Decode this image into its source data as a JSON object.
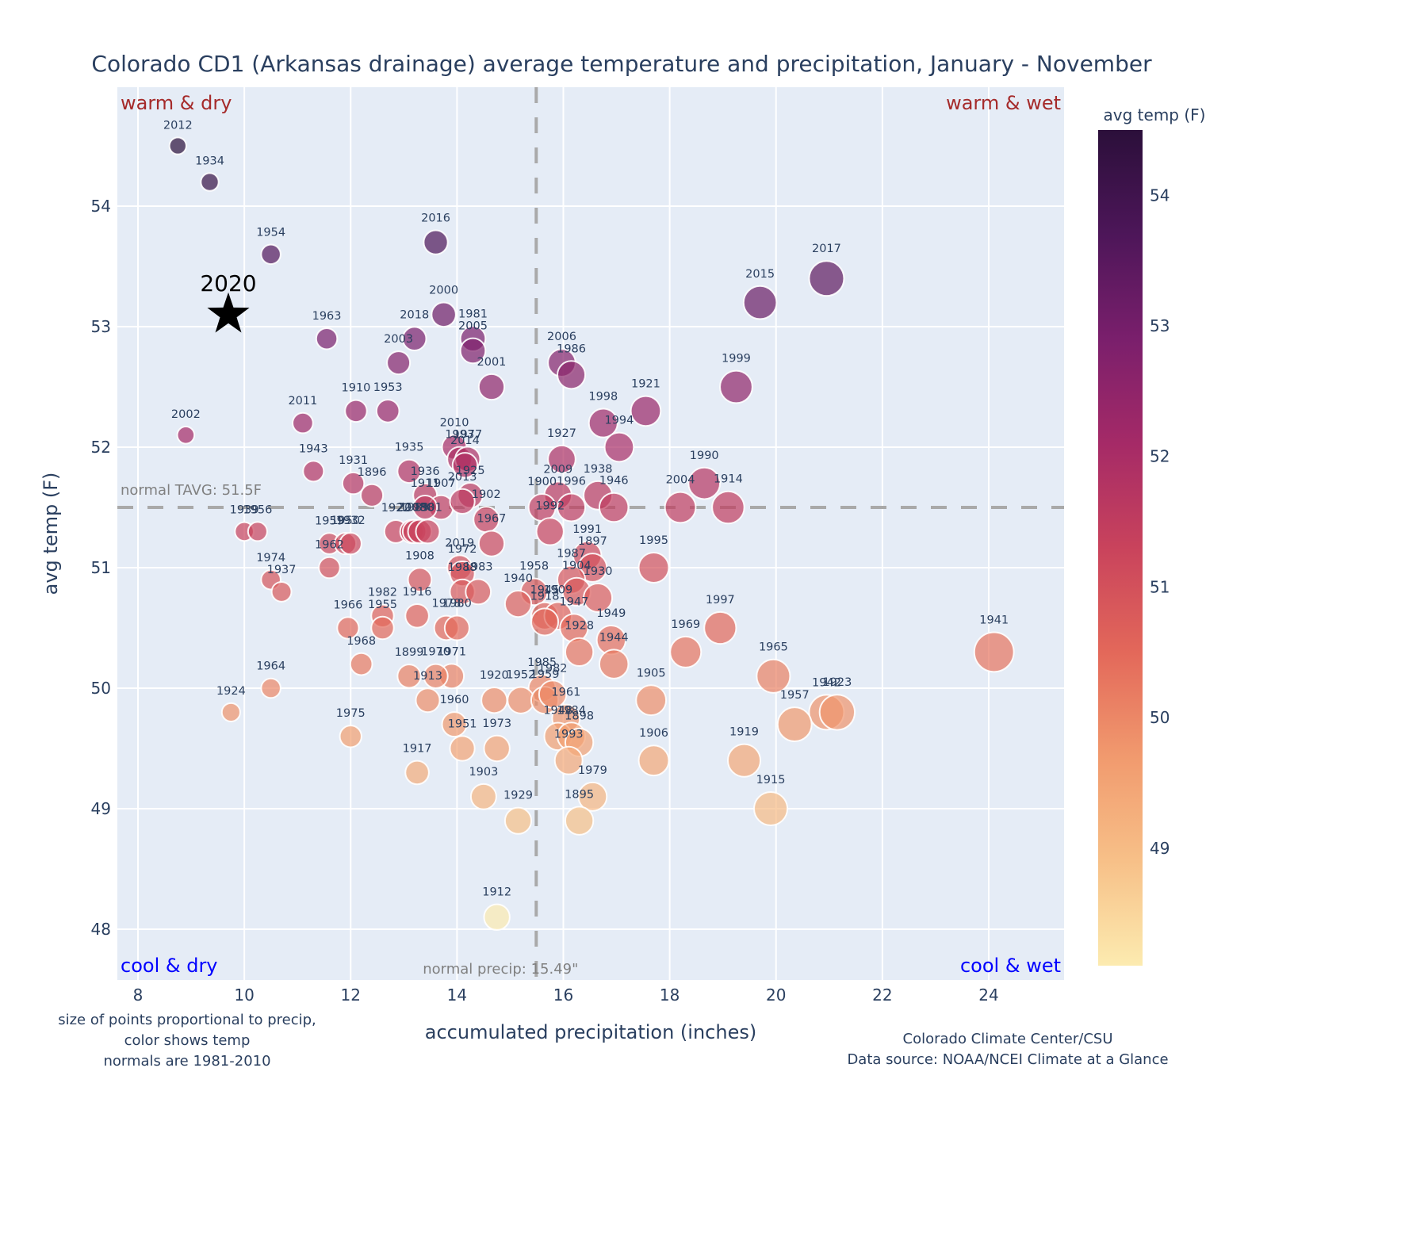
{
  "chart_data": {
    "type": "scatter",
    "title": "Colorado CD1 (Arkansas drainage) average temperature and precipitation, January - November",
    "xlabel": "accumulated precipitation (inches)",
    "ylabel": "avg temp (F)",
    "xlim": [
      7.62,
      25.4
    ],
    "ylim": [
      47.6,
      55.0
    ],
    "xticks": [
      8,
      10,
      12,
      14,
      16,
      18,
      20,
      22,
      24
    ],
    "yticks": [
      48,
      49,
      50,
      51,
      52,
      53,
      54
    ],
    "grid": true,
    "size_encoding": "precipitation",
    "color_encoding": "avg temp (F)",
    "colorbar": {
      "title": "avg temp (F)",
      "range": [
        48.1,
        54.5
      ],
      "ticks": [
        49,
        50,
        51,
        52,
        53,
        54
      ],
      "colorscale": [
        "#fcebb0",
        "#f7c088",
        "#f19a6e",
        "#e3685a",
        "#c9435c",
        "#a52a67",
        "#7a1f6c",
        "#4d1659",
        "#2b0f3a"
      ]
    },
    "normals": {
      "temp": 51.5,
      "temp_label": "normal TAVG: 51.5F",
      "precip": 15.49,
      "precip_label": "normal precip: 15.49\""
    },
    "quadrants": {
      "top_left": "warm & dry",
      "top_right": "warm & wet",
      "bottom_left": "cool & dry",
      "bottom_right": "cool & wet"
    },
    "highlight": {
      "year": "2020",
      "precip": 9.7,
      "temp": 53.1,
      "marker": "star"
    },
    "points": [
      {
        "year": "2012",
        "precip": 8.75,
        "temp": 54.5
      },
      {
        "year": "1934",
        "precip": 9.35,
        "temp": 54.2
      },
      {
        "year": "1954",
        "precip": 10.5,
        "temp": 53.6
      },
      {
        "year": "2016",
        "precip": 13.6,
        "temp": 53.7
      },
      {
        "year": "2017",
        "precip": 20.95,
        "temp": 53.4
      },
      {
        "year": "2015",
        "precip": 19.7,
        "temp": 53.2
      },
      {
        "year": "2000",
        "precip": 13.75,
        "temp": 53.1
      },
      {
        "year": "1963",
        "precip": 11.55,
        "temp": 52.9
      },
      {
        "year": "2018",
        "precip": 13.2,
        "temp": 52.9
      },
      {
        "year": "1981",
        "precip": 14.3,
        "temp": 52.9
      },
      {
        "year": "2005",
        "precip": 14.3,
        "temp": 52.8
      },
      {
        "year": "2003",
        "precip": 12.9,
        "temp": 52.7
      },
      {
        "year": "2006",
        "precip": 15.97,
        "temp": 52.7
      },
      {
        "year": "1986",
        "precip": 16.15,
        "temp": 52.6
      },
      {
        "year": "2001",
        "precip": 14.65,
        "temp": 52.5
      },
      {
        "year": "1999",
        "precip": 19.25,
        "temp": 52.5
      },
      {
        "year": "1921",
        "precip": 17.55,
        "temp": 52.3
      },
      {
        "year": "1910",
        "precip": 12.1,
        "temp": 52.3
      },
      {
        "year": "1953",
        "precip": 12.7,
        "temp": 52.3
      },
      {
        "year": "1998",
        "precip": 16.75,
        "temp": 52.2
      },
      {
        "year": "2011",
        "precip": 11.1,
        "temp": 52.2
      },
      {
        "year": "2002",
        "precip": 8.9,
        "temp": 52.1
      },
      {
        "year": "1994",
        "precip": 17.05,
        "temp": 52.0
      },
      {
        "year": "2010",
        "precip": 13.95,
        "temp": 52.0
      },
      {
        "year": "1993",
        "precip": 14.05,
        "temp": 51.9
      },
      {
        "year": "1977",
        "precip": 14.2,
        "temp": 51.9
      },
      {
        "year": "1927",
        "precip": 15.97,
        "temp": 51.9
      },
      {
        "year": "1943",
        "precip": 11.3,
        "temp": 51.8
      },
      {
        "year": "1935",
        "precip": 13.1,
        "temp": 51.8
      },
      {
        "year": "2014",
        "precip": 14.15,
        "temp": 51.85
      },
      {
        "year": "1990",
        "precip": 18.65,
        "temp": 51.7
      },
      {
        "year": "1931",
        "precip": 12.05,
        "temp": 51.7
      },
      {
        "year": "2009",
        "precip": 15.9,
        "temp": 51.6
      },
      {
        "year": "1938",
        "precip": 16.65,
        "temp": 51.6
      },
      {
        "year": "1896",
        "precip": 12.4,
        "temp": 51.6
      },
      {
        "year": "1936",
        "precip": 13.4,
        "temp": 51.6
      },
      {
        "year": "1907",
        "precip": 13.7,
        "temp": 51.5
      },
      {
        "year": "1911",
        "precip": 13.4,
        "temp": 51.5
      },
      {
        "year": "1925",
        "precip": 14.25,
        "temp": 51.6
      },
      {
        "year": "2013",
        "precip": 14.1,
        "temp": 51.55
      },
      {
        "year": "1900",
        "precip": 15.6,
        "temp": 51.5
      },
      {
        "year": "1996",
        "precip": 16.15,
        "temp": 51.5
      },
      {
        "year": "1946",
        "precip": 16.95,
        "temp": 51.5
      },
      {
        "year": "2004",
        "precip": 18.2,
        "temp": 51.5
      },
      {
        "year": "1914",
        "precip": 19.1,
        "temp": 51.5
      },
      {
        "year": "1902",
        "precip": 14.55,
        "temp": 51.4
      },
      {
        "year": "1992",
        "precip": 15.75,
        "temp": 51.3
      },
      {
        "year": "1939",
        "precip": 10.0,
        "temp": 51.3
      },
      {
        "year": "1956",
        "precip": 10.25,
        "temp": 51.3
      },
      {
        "year": "1922",
        "precip": 12.85,
        "temp": 51.3
      },
      {
        "year": "2008",
        "precip": 13.15,
        "temp": 51.3
      },
      {
        "year": "1989",
        "precip": 13.2,
        "temp": 51.3
      },
      {
        "year": "1988",
        "precip": 13.3,
        "temp": 51.3
      },
      {
        "year": "1901",
        "precip": 13.45,
        "temp": 51.3
      },
      {
        "year": "1967",
        "precip": 14.65,
        "temp": 51.2
      },
      {
        "year": "1959",
        "precip": 11.6,
        "temp": 51.2
      },
      {
        "year": "1950",
        "precip": 11.9,
        "temp": 51.2
      },
      {
        "year": "1932",
        "precip": 12.0,
        "temp": 51.2
      },
      {
        "year": "1991",
        "precip": 16.45,
        "temp": 51.1
      },
      {
        "year": "1897",
        "precip": 16.55,
        "temp": 51.0
      },
      {
        "year": "1962",
        "precip": 11.6,
        "temp": 51.0
      },
      {
        "year": "2019",
        "precip": 14.05,
        "temp": 51.0
      },
      {
        "year": "1995",
        "precip": 17.7,
        "temp": 51.0
      },
      {
        "year": "1972",
        "precip": 14.1,
        "temp": 50.95
      },
      {
        "year": "1987",
        "precip": 16.15,
        "temp": 50.9
      },
      {
        "year": "1974",
        "precip": 10.5,
        "temp": 50.9
      },
      {
        "year": "1908",
        "precip": 13.3,
        "temp": 50.9
      },
      {
        "year": "1904",
        "precip": 16.25,
        "temp": 50.8
      },
      {
        "year": "1958",
        "precip": 15.45,
        "temp": 50.8
      },
      {
        "year": "1930",
        "precip": 16.65,
        "temp": 50.75
      },
      {
        "year": "1937",
        "precip": 10.7,
        "temp": 50.8
      },
      {
        "year": "1988b",
        "label": "1988",
        "precip": 14.1,
        "temp": 50.8
      },
      {
        "year": "1983",
        "precip": 14.4,
        "temp": 50.8
      },
      {
        "year": "1940",
        "precip": 15.15,
        "temp": 50.7
      },
      {
        "year": "1945",
        "precip": 15.65,
        "temp": 50.6
      },
      {
        "year": "1909",
        "precip": 15.9,
        "temp": 50.6
      },
      {
        "year": "1916",
        "precip": 13.25,
        "temp": 50.6
      },
      {
        "year": "1918",
        "precip": 15.65,
        "temp": 50.55
      },
      {
        "year": "1978",
        "precip": 13.8,
        "temp": 50.5
      },
      {
        "year": "1980",
        "precip": 14.0,
        "temp": 50.5
      },
      {
        "year": "1982",
        "precip": 12.6,
        "temp": 50.6
      },
      {
        "year": "1966",
        "precip": 11.95,
        "temp": 50.5
      },
      {
        "year": "1955",
        "precip": 12.6,
        "temp": 50.5
      },
      {
        "year": "1949",
        "precip": 16.9,
        "temp": 50.4
      },
      {
        "year": "1947",
        "precip": 16.2,
        "temp": 50.5
      },
      {
        "year": "1969",
        "precip": 18.3,
        "temp": 50.3
      },
      {
        "year": "1941",
        "precip": 24.1,
        "temp": 50.3
      },
      {
        "year": "1928",
        "precip": 16.3,
        "temp": 50.3
      },
      {
        "year": "1997",
        "precip": 18.95,
        "temp": 50.5
      },
      {
        "year": "1968",
        "precip": 12.2,
        "temp": 50.2
      },
      {
        "year": "1944",
        "precip": 16.95,
        "temp": 50.2
      },
      {
        "year": "1965",
        "precip": 19.95,
        "temp": 50.1
      },
      {
        "year": "1899",
        "precip": 13.1,
        "temp": 50.1
      },
      {
        "year": "1971",
        "precip": 13.9,
        "temp": 50.1
      },
      {
        "year": "1970",
        "precip": 13.6,
        "temp": 50.1
      },
      {
        "year": "1985",
        "precip": 15.6,
        "temp": 50.0
      },
      {
        "year": "1964",
        "precip": 10.5,
        "temp": 50.0
      },
      {
        "year": "1905",
        "precip": 17.65,
        "temp": 49.9
      },
      {
        "year": "1920",
        "precip": 14.7,
        "temp": 49.9
      },
      {
        "year": "1952",
        "precip": 15.2,
        "temp": 49.9
      },
      {
        "year": "1959b",
        "label": "1959",
        "precip": 15.65,
        "temp": 49.9
      },
      {
        "year": "1982b",
        "label": "1982",
        "precip": 15.8,
        "temp": 49.95
      },
      {
        "year": "1913",
        "precip": 13.45,
        "temp": 49.9
      },
      {
        "year": "1924",
        "precip": 9.75,
        "temp": 49.8
      },
      {
        "year": "1942",
        "precip": 20.95,
        "temp": 49.8
      },
      {
        "year": "1923",
        "precip": 21.15,
        "temp": 49.8
      },
      {
        "year": "1957",
        "precip": 20.35,
        "temp": 49.7
      },
      {
        "year": "1961",
        "precip": 16.05,
        "temp": 49.75
      },
      {
        "year": "1960",
        "precip": 13.95,
        "temp": 49.7
      },
      {
        "year": "1948",
        "precip": 15.9,
        "temp": 49.6
      },
      {
        "year": "1984",
        "precip": 16.15,
        "temp": 49.6
      },
      {
        "year": "1898",
        "precip": 16.3,
        "temp": 49.55
      },
      {
        "year": "1975",
        "precip": 12.0,
        "temp": 49.6
      },
      {
        "year": "1951",
        "precip": 14.1,
        "temp": 49.5
      },
      {
        "year": "1973",
        "precip": 14.75,
        "temp": 49.5
      },
      {
        "year": "1993b",
        "label": "1993",
        "precip": 16.1,
        "temp": 49.4
      },
      {
        "year": "1919",
        "precip": 19.4,
        "temp": 49.4
      },
      {
        "year": "1906",
        "precip": 17.7,
        "temp": 49.4
      },
      {
        "year": "1917",
        "precip": 13.25,
        "temp": 49.3
      },
      {
        "year": "1979",
        "precip": 16.55,
        "temp": 49.1
      },
      {
        "year": "1903",
        "precip": 14.5,
        "temp": 49.1
      },
      {
        "year": "1915",
        "precip": 19.9,
        "temp": 49.0
      },
      {
        "year": "1929",
        "precip": 15.15,
        "temp": 48.9
      },
      {
        "year": "1895",
        "precip": 16.3,
        "temp": 48.9
      },
      {
        "year": "1912",
        "precip": 14.75,
        "temp": 48.1
      }
    ]
  },
  "notes": {
    "size_note": [
      "size of points proportional to precip,",
      "color shows temp",
      "normals are 1981-2010"
    ],
    "credit": [
      "Colorado Climate Center/CSU",
      "Data source: NOAA/NCEI Climate at a Glance"
    ]
  }
}
